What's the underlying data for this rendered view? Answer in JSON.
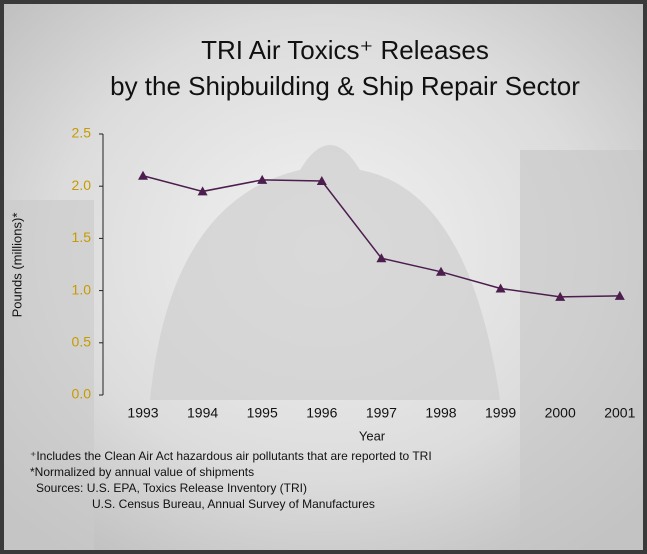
{
  "chart_data": {
    "type": "line",
    "title": [
      "TRI Air Toxics⁺ Releases",
      "by the Shipbuilding & Ship Repair Sector"
    ],
    "y_label": "Pounds (millions)*",
    "x_label": "Year",
    "categories": [
      "1993",
      "1994",
      "1995",
      "1996",
      "1997",
      "1998",
      "1999",
      "2000",
      "2001"
    ],
    "series": [
      {
        "name": "TRI Air Toxics Releases",
        "color": "#4b1e4e",
        "values": [
          2.1,
          1.95,
          2.06,
          2.05,
          1.31,
          1.18,
          1.02,
          0.94,
          0.95
        ]
      }
    ],
    "ylim": [
      0,
      2.5
    ],
    "yticks": [
      {
        "value": 0,
        "label": "0.0"
      },
      {
        "value": 0.5,
        "label": "0.5"
      },
      {
        "value": 1,
        "label": "1.0"
      },
      {
        "value": 1.5,
        "label": "1.5"
      },
      {
        "value": 2,
        "label": "2.0"
      },
      {
        "value": 2.5,
        "label": "2.5"
      }
    ],
    "notes": [
      "⁺Includes the Clean Air Act hazardous air pollutants that are reported to TRI",
      "*Normalized by annual value of shipments",
      "Sources: U.S. EPA, Toxics Release Inventory (TRI)",
      "U.S. Census Bureau, Annual Survey of Manufactures"
    ]
  }
}
